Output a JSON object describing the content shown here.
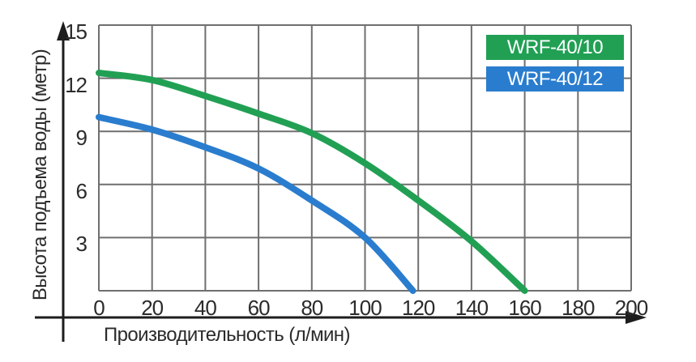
{
  "chart_data": {
    "type": "line",
    "title": "",
    "xlabel": "Производительность (л/мин)",
    "ylabel": "Высота подъема воды (метр)",
    "xlim": [
      0,
      200
    ],
    "ylim": [
      0,
      15
    ],
    "x_ticks": [
      0,
      20,
      40,
      60,
      80,
      100,
      120,
      140,
      160,
      180,
      200
    ],
    "y_ticks": [
      3,
      6,
      9,
      12,
      15
    ],
    "grid": true,
    "legend_position": "top-right",
    "series": [
      {
        "name": "WRF-40/10",
        "color": "#21A054",
        "x": [
          0,
          20,
          40,
          60,
          80,
          100,
          120,
          140,
          160
        ],
        "y": [
          12.3,
          11.9,
          11.0,
          10.0,
          8.9,
          7.2,
          5.1,
          2.8,
          0
        ]
      },
      {
        "name": "WRF-40/12",
        "color": "#2A7DCE",
        "x": [
          0,
          20,
          40,
          60,
          80,
          100,
          118
        ],
        "y": [
          9.8,
          9.1,
          8.1,
          6.9,
          5.1,
          3.0,
          0
        ]
      }
    ]
  },
  "colors": {
    "grid": "#6F6F6F",
    "axis": "#1D1D1D",
    "text": "#2B2B2B",
    "legend_text": "#FFFFFF",
    "background": "#FFFFFF"
  }
}
